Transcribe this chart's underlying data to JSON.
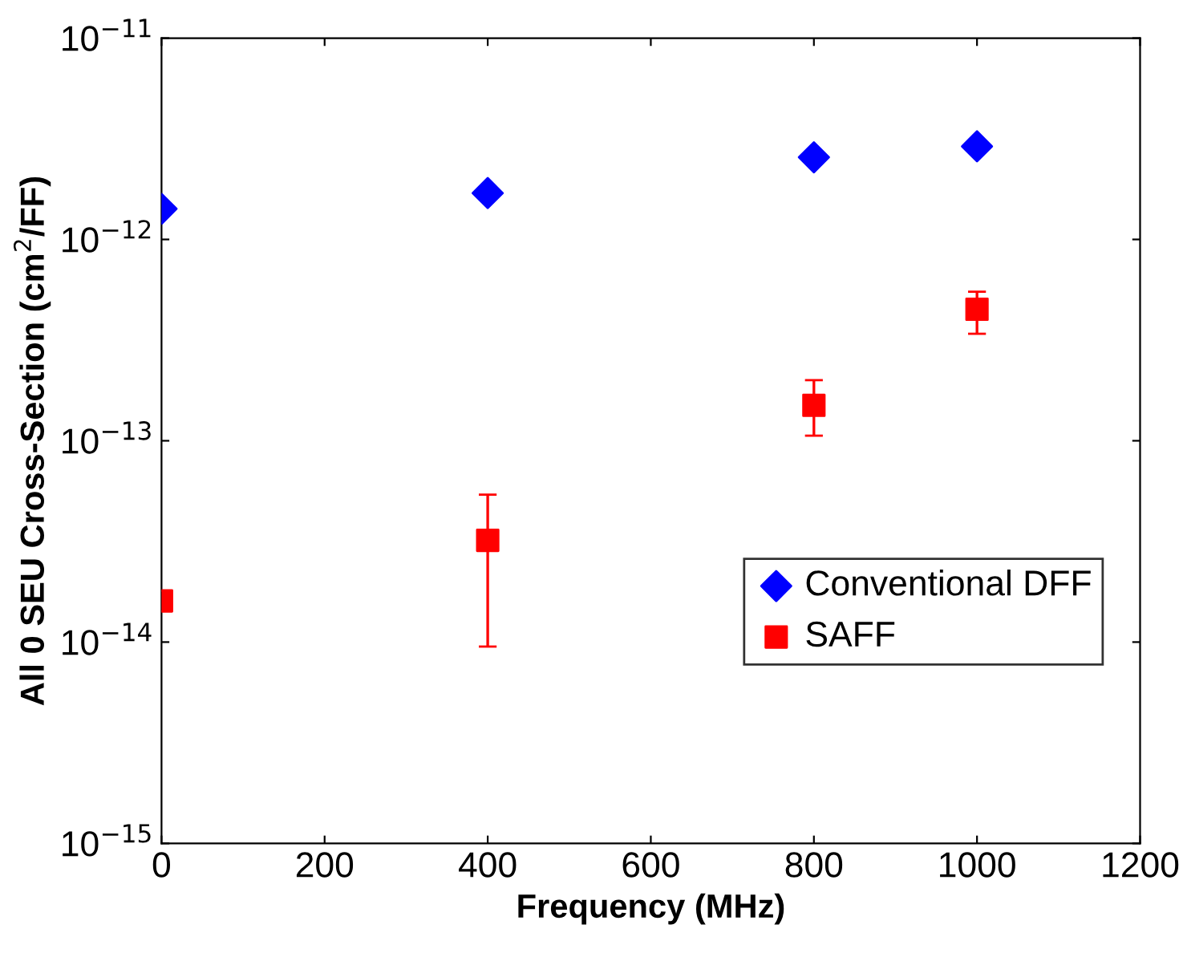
{
  "chart_data": {
    "type": "scatter",
    "xlabel": "Frequency (MHz)",
    "ylabel": "All 0 SEU Cross-Section (cm$^{2}$/FF)",
    "x": [
      0,
      400,
      800,
      1000
    ],
    "series": [
      {
        "name": "Conventional DFF",
        "color": "#0000ff",
        "marker": "diamond",
        "values": [
          1.42e-12,
          1.7e-12,
          2.56e-12,
          2.9e-12
        ]
      },
      {
        "name": "SAFF",
        "color": "#ff0000",
        "marker": "square",
        "values": [
          1.6e-14,
          3.2e-14,
          1.5e-13,
          4.5e-13
        ],
        "errors": [
          null,
          [
            9.5e-15,
            5.4e-14
          ],
          [
            1.06e-13,
            2e-13
          ],
          [
            3.4e-13,
            5.5e-13
          ]
        ]
      }
    ],
    "log": "y",
    "xlim": [
      0,
      1200
    ],
    "xticks": [
      0,
      200,
      400,
      600,
      800,
      1000,
      1200
    ],
    "ylim": [
      1e-15,
      1e-11
    ],
    "yticks": [
      {
        "value": 1e-15,
        "label": "10$^{−15}$"
      },
      {
        "value": 1e-14,
        "label": "10$^{−14}$"
      },
      {
        "value": 1e-13,
        "label": "10$^{−13}$"
      },
      {
        "value": 1e-12,
        "label": "10$^{−12}$"
      },
      {
        "value": 1e-11,
        "label": "10$^{−11}$"
      }
    ],
    "legend": "bottom right",
    "grid": false
  }
}
